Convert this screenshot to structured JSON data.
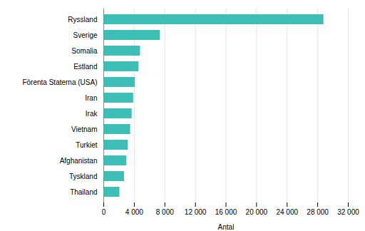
{
  "chart_data": {
    "type": "bar",
    "orientation": "horizontal",
    "categories": [
      "Thailand",
      "Tyskland",
      "Afghanistan",
      "Turkiet",
      "Vietnam",
      "Irak",
      "Iran",
      "Förenta Staterna (USA)",
      "Estland",
      "Somalia",
      "Sverige",
      "Ryssland"
    ],
    "values": [
      2100,
      2700,
      3000,
      3200,
      3500,
      3700,
      3900,
      4100,
      4600,
      4800,
      7400,
      28800
    ],
    "color": "#3dbfb8",
    "xlabel": "Antal",
    "xlim": [
      0,
      32000
    ],
    "xticks": [
      0,
      {
        "value": 4000,
        "label": "4 000"
      },
      {
        "value": 8000,
        "label": "8 000"
      },
      {
        "value": 12000,
        "label": "12 000"
      },
      {
        "value": 16000,
        "label": "16 000"
      },
      {
        "value": 20000,
        "label": "20 000"
      },
      {
        "value": 24000,
        "label": "24 000"
      },
      {
        "value": 28000,
        "label": "28 000"
      },
      {
        "value": 32000,
        "label": "32 000"
      }
    ],
    "grid": true
  }
}
